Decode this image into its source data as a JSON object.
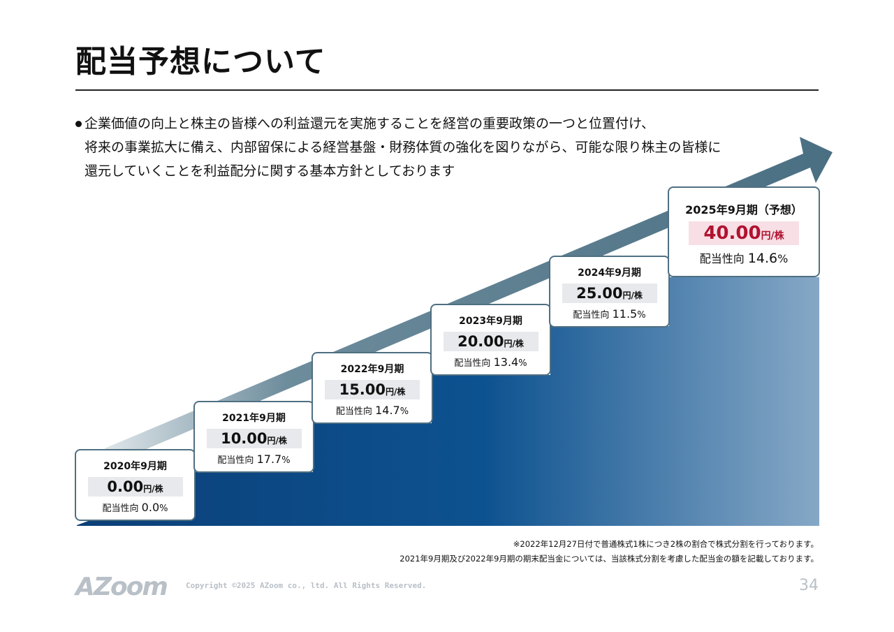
{
  "title": "配当予想について",
  "bullet_lines": [
    "企業価値の向上と株主の皆様への利益還元を実施することを経営の重要政策の一つと位置付け、",
    "将来の事業拡大に備え、内部留保による経営基盤・財務体質の強化を図りながら、可能な限り株主の皆様に",
    "還元していくことを利益配分に関する基本方針としております"
  ],
  "unit": "円/株",
  "ratio_label": "配当性向",
  "items": [
    {
      "period": "2020年9月期",
      "amount": "0.00",
      "ratio": "0.0",
      "pct": "%"
    },
    {
      "period": "2021年9月期",
      "amount": "10.00",
      "ratio": "17.7",
      "pct": "%"
    },
    {
      "period": "2022年9月期",
      "amount": "15.00",
      "ratio": "14.7",
      "pct": "%"
    },
    {
      "period": "2023年9月期",
      "amount": "20.00",
      "ratio": "13.4",
      "pct": "%"
    },
    {
      "period": "2024年9月期",
      "amount": "25.00",
      "ratio": "11.5",
      "pct": "%"
    },
    {
      "period": "2025年9月期（予想）",
      "amount": "40.00",
      "ratio": "14.6",
      "pct": "%"
    }
  ],
  "notes": [
    "※2022年12月27日付で普通株式1株につき2株の割合で株式分割を行っております。",
    "2021年9月期及び2022年9月期の期末配当金については、当該株式分割を考慮した配当金の額を記載しております。"
  ],
  "footer": {
    "logo": "AZoom",
    "copyright": "Copyright ©2025 AZoom co., ltd. All Rights Reserved.",
    "page": "34"
  },
  "colors": {
    "forecast_amount": "#b0122f",
    "step_dark": "#0b4a86",
    "step_light": "#86a8c6",
    "arrow": "#4f7386"
  }
}
